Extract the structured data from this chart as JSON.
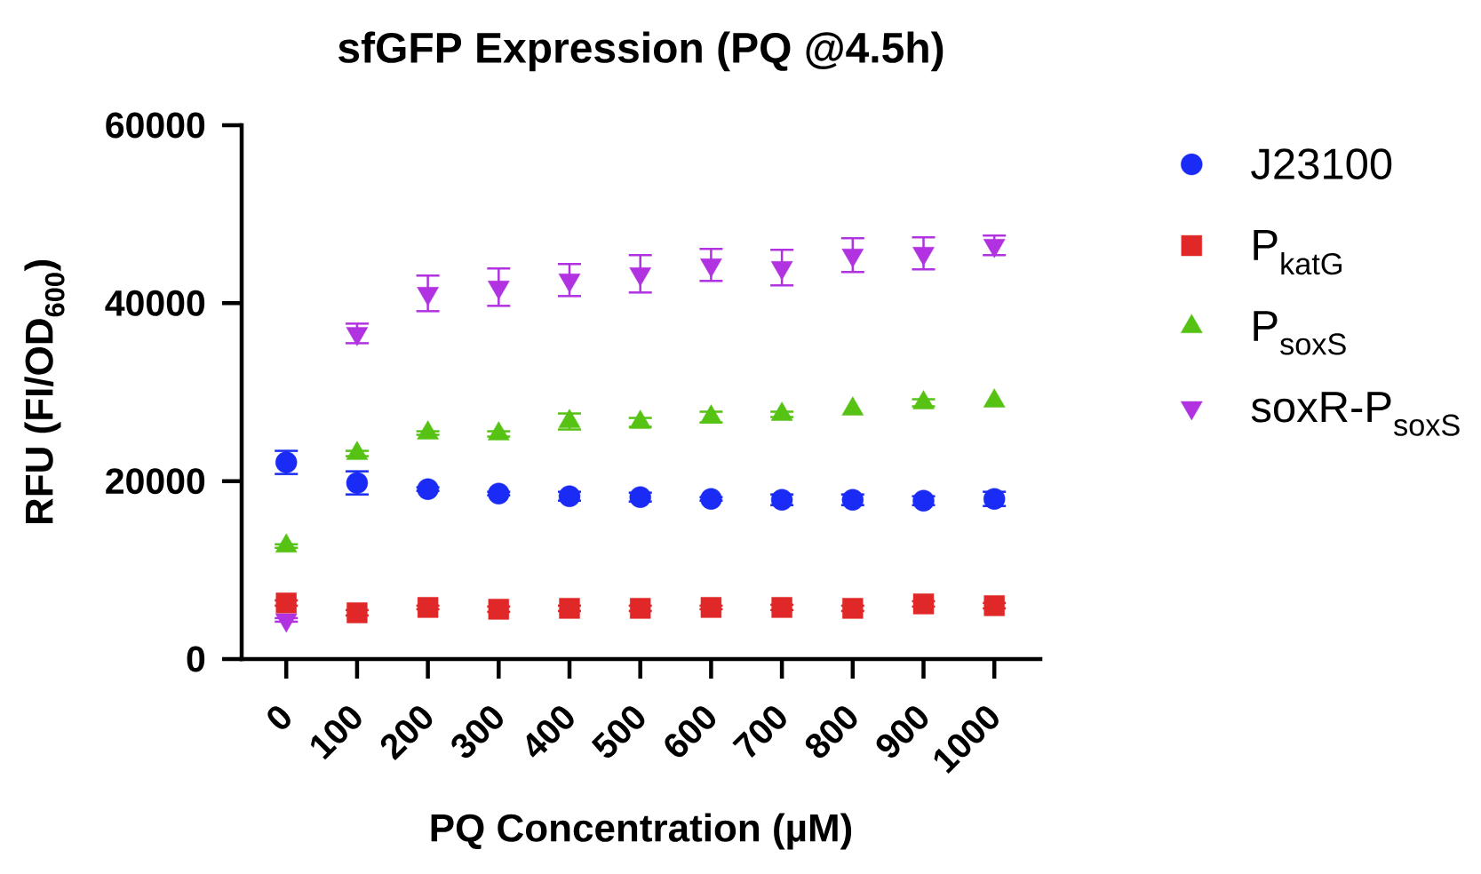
{
  "chart_data": {
    "type": "scatter",
    "title": "sfGFP Expression (PQ @4.5h)",
    "xlabel": "PQ Concentration (µM)",
    "ylabel": "RFU (FI/OD$_{600}$)",
    "categories": [
      "0",
      "100",
      "200",
      "300",
      "400",
      "500",
      "600",
      "700",
      "800",
      "900",
      "1000"
    ],
    "ylim": [
      0,
      60000
    ],
    "yticks": [
      0,
      20000,
      40000,
      60000
    ],
    "legend": "right",
    "series": [
      {
        "name": "J23100",
        "color": "#1a2bf5",
        "marker": "circle",
        "values": [
          22100,
          19800,
          19100,
          18600,
          18300,
          18200,
          18000,
          17900,
          17900,
          17800,
          18000
        ],
        "errors": [
          1300,
          1300,
          200,
          200,
          500,
          500,
          200,
          600,
          600,
          500,
          800
        ]
      },
      {
        "name": "P$_{katG}$",
        "color": "#e02828",
        "marker": "square",
        "values": [
          6300,
          5200,
          5800,
          5600,
          5700,
          5700,
          5800,
          5800,
          5700,
          6200,
          6000
        ],
        "errors": [
          300,
          300,
          200,
          300,
          300,
          300,
          200,
          300,
          300,
          300,
          300
        ]
      },
      {
        "name": "P$_{soxS}$",
        "color": "#55c214",
        "marker": "triangle",
        "values": [
          12700,
          23100,
          25400,
          25300,
          26700,
          26600,
          27200,
          27500,
          28100,
          28800,
          29000
        ],
        "errors": [
          200,
          300,
          200,
          300,
          900,
          500,
          600,
          300,
          null,
          400,
          null
        ]
      },
      {
        "name": "soxR-P$_{soxS}$",
        "color": "#b032e0",
        "marker": "triangle-down",
        "values": [
          4400,
          36600,
          41100,
          41800,
          42600,
          43300,
          44300,
          44000,
          45400,
          45600,
          46500
        ],
        "errors": [
          200,
          1100,
          2000,
          2100,
          1800,
          2100,
          1800,
          2000,
          1900,
          1800,
          1100
        ]
      }
    ]
  }
}
